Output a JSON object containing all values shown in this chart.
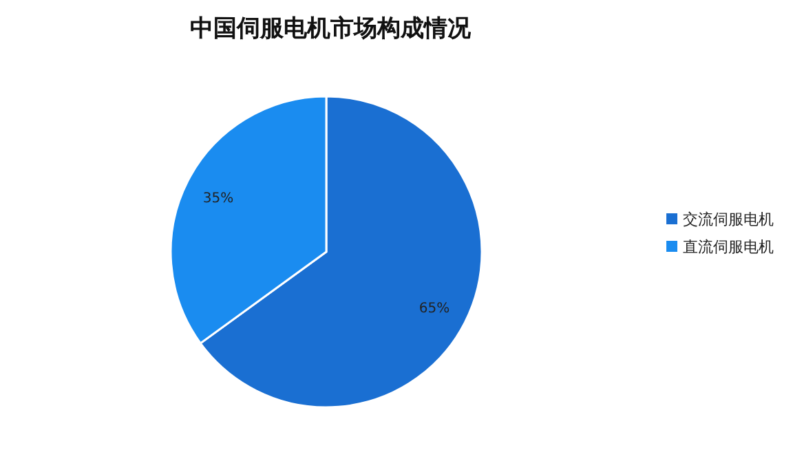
{
  "chart_data": {
    "type": "pie",
    "title": "中国伺服电机市场构成情况",
    "categories": [
      "交流伺服电机",
      "直流伺服电机"
    ],
    "values": [
      65,
      35
    ],
    "value_labels": [
      "65%",
      "35%"
    ],
    "colors": [
      "#1a6fd2",
      "#1a8cf0"
    ],
    "legend": "right"
  }
}
